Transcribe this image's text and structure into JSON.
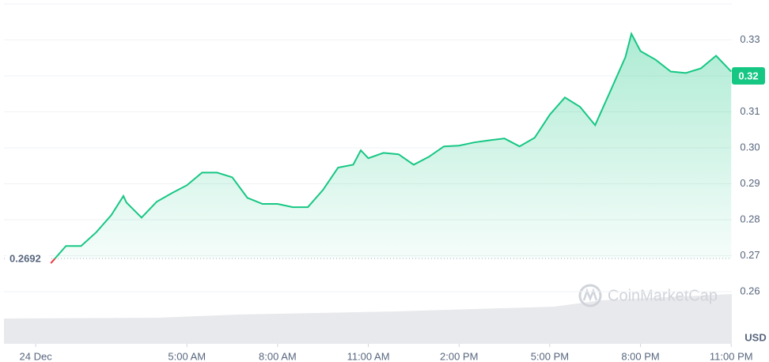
{
  "chart_data": {
    "type": "line",
    "x": [
      0.5,
      1.0,
      1.5,
      2.0,
      2.5,
      2.9,
      3.0,
      3.5,
      4.0,
      4.5,
      5.0,
      5.5,
      6.0,
      6.5,
      7.0,
      7.5,
      8.0,
      8.5,
      9.0,
      9.5,
      10.0,
      10.5,
      10.75,
      11.0,
      11.5,
      12.0,
      12.5,
      13.0,
      13.5,
      14.0,
      14.5,
      15.0,
      15.5,
      16.0,
      16.5,
      17.0,
      17.5,
      18.0,
      18.5,
      19.0,
      19.5,
      19.7,
      20.0,
      20.5,
      21.0,
      21.5,
      22.0,
      22.5,
      23.0
    ],
    "values": [
      0.2679,
      0.2727,
      0.2727,
      0.2765,
      0.2813,
      0.2866,
      0.2848,
      0.2806,
      0.285,
      0.2874,
      0.2896,
      0.2931,
      0.2931,
      0.2918,
      0.2861,
      0.2844,
      0.2844,
      0.2835,
      0.2835,
      0.2883,
      0.2945,
      0.2953,
      0.2993,
      0.2971,
      0.2986,
      0.2982,
      0.2953,
      0.2975,
      0.3004,
      0.3006,
      0.3015,
      0.3021,
      0.3026,
      0.3004,
      0.3028,
      0.3092,
      0.314,
      0.3114,
      0.3063,
      0.3157,
      0.3252,
      0.3317,
      0.3269,
      0.3245,
      0.3212,
      0.3208,
      0.3221,
      0.3256,
      0.3212
    ],
    "up_color": "#16c784",
    "down_color": "#ea3943",
    "baseline": 0.2692,
    "last_price": 0.32,
    "xlim": [
      -1.05,
      23.02
    ],
    "xticks": [
      {
        "value": 0,
        "label": "24 Dec"
      },
      {
        "value": 5,
        "label": "5:00 AM"
      },
      {
        "value": 8,
        "label": "8:00 AM"
      },
      {
        "value": 11,
        "label": "11:00 AM"
      },
      {
        "value": 14,
        "label": "2:00 PM"
      },
      {
        "value": 17,
        "label": "5:00 PM"
      },
      {
        "value": 20,
        "label": "8:00 PM"
      },
      {
        "value": 23,
        "label": "11:00 PM"
      }
    ],
    "ylim": [
      0.2455,
      0.34
    ],
    "yticks": [
      0.26,
      0.27,
      0.28,
      0.29,
      {
        "value": 0.3,
        "label": "0.30"
      },
      0.31,
      0.32,
      0.33
    ],
    "grid": true,
    "currency": "USD",
    "watermark": "CoinMarketCap"
  }
}
